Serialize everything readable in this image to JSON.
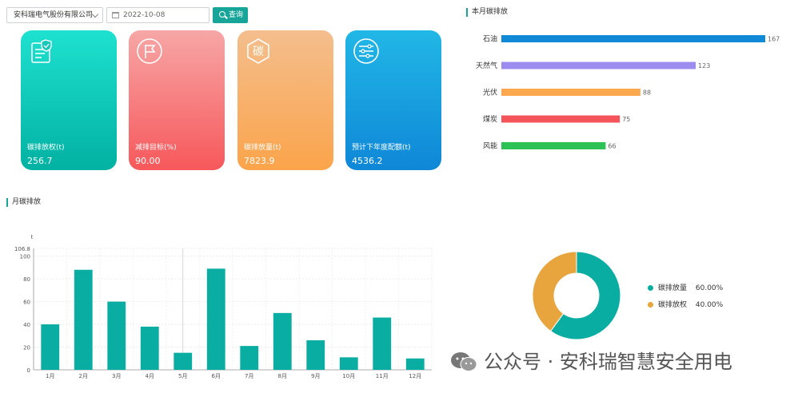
{
  "toolbar": {
    "company": "安科瑞电气股份有限公司",
    "date": "2022-10-08",
    "query_label": "查询"
  },
  "cards": [
    {
      "label": "碳排放权(t)",
      "value": "256.7",
      "icon": "document-check-icon"
    },
    {
      "label": "减排目标(%)",
      "value": "90.00",
      "icon": "flag-icon"
    },
    {
      "label": "碳排放量(t)",
      "value": "7823.9",
      "icon": "carbon-hexagon-icon",
      "icon_text": "碳"
    },
    {
      "label": "预计下年度配额(t)",
      "value": "4536.2",
      "icon": "sliders-icon"
    }
  ],
  "sections": {
    "monthly_title": "本月碳排放",
    "yearly_title": "月碳排放"
  },
  "chart_data": [
    {
      "type": "bar",
      "orientation": "horizontal",
      "title": "本月碳排放",
      "categories": [
        "石油",
        "天然气",
        "光伏",
        "煤炭",
        "风能"
      ],
      "values": [
        167,
        123,
        88,
        75,
        66
      ],
      "colors": [
        "#1089d6",
        "#9d8cf0",
        "#fba84f",
        "#f5555a",
        "#2cc255"
      ]
    },
    {
      "type": "bar",
      "title": "月碳排放",
      "ylabel": "t",
      "ylim": [
        0,
        106.8
      ],
      "yticks": [
        0,
        20,
        40,
        60,
        80,
        100,
        106.8
      ],
      "categories": [
        "1月",
        "2月",
        "3月",
        "4月",
        "5月",
        "6月",
        "7月",
        "8月",
        "9月",
        "10月",
        "11月",
        "12月"
      ],
      "values": [
        40,
        88,
        60,
        38,
        15,
        89,
        21,
        50,
        26,
        11,
        46,
        10
      ],
      "color": "#0aada2"
    },
    {
      "type": "pie",
      "donut": true,
      "labels": [
        "碳排放量",
        "碳排放权"
      ],
      "values": [
        60,
        40
      ],
      "percent_labels": [
        "60.00%",
        "40.00%"
      ],
      "colors": [
        "#0aada2",
        "#e8a53d"
      ]
    }
  ],
  "watermark": "公众号 · 安科瑞智慧安全用电"
}
